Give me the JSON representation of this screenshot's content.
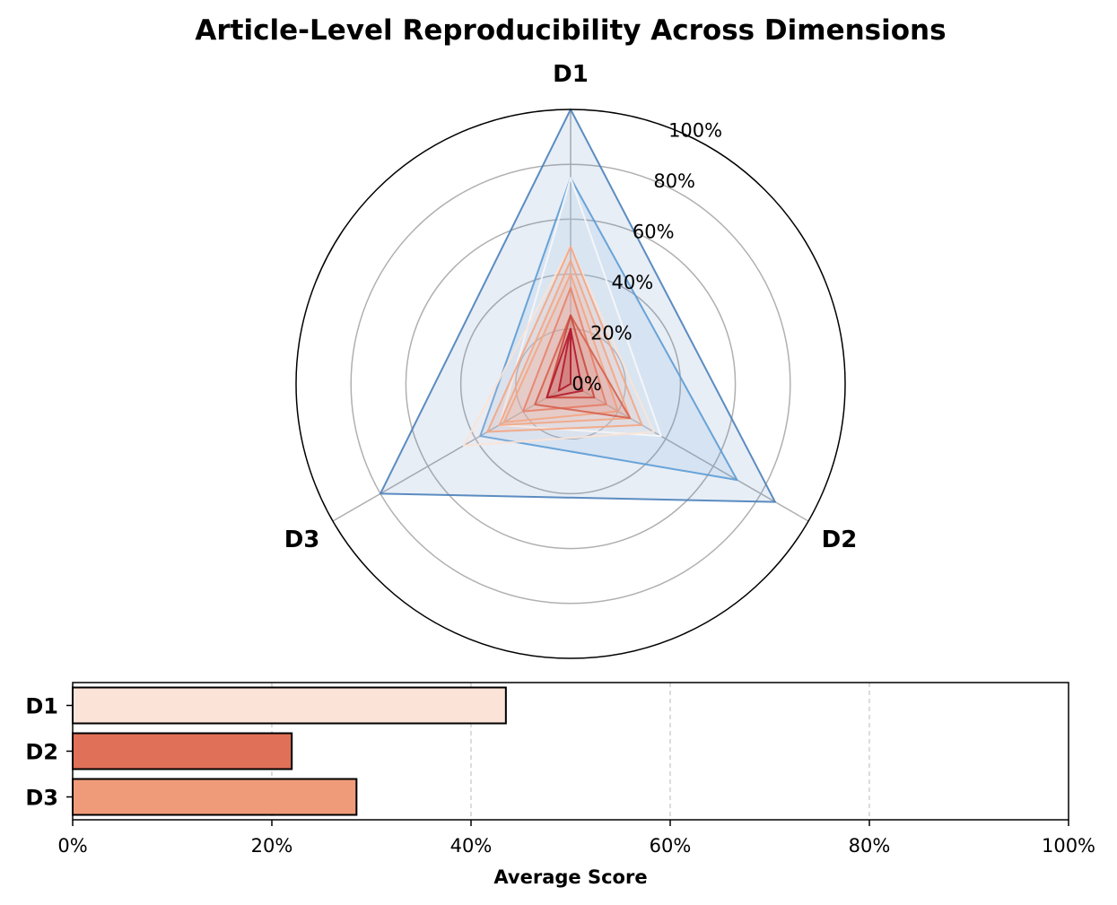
{
  "chart_data": [
    {
      "type": "radar",
      "title": "Article-Level Reproducibility Across Dimensions",
      "axes": [
        "D1",
        "D2",
        "D3"
      ],
      "r_ticks": [
        "0%",
        "20%",
        "40%",
        "60%",
        "80%",
        "100%"
      ],
      "r_range": [
        0,
        100
      ],
      "grid": true,
      "series": [
        {
          "values": [
            100,
            86,
            80
          ],
          "color": "#4a7fba"
        },
        {
          "values": [
            75,
            70,
            38
          ],
          "color": "#5b9bd5"
        },
        {
          "values": [
            75,
            38,
            30
          ],
          "color": "#f7f7f7"
        },
        {
          "values": [
            50,
            35,
            45
          ],
          "color": "#fbe3d5"
        },
        {
          "values": [
            50,
            30,
            35
          ],
          "color": "#f4a582"
        },
        {
          "values": [
            45,
            25,
            30
          ],
          "color": "#f4a582"
        },
        {
          "values": [
            40,
            20,
            28
          ],
          "color": "#f4a582"
        },
        {
          "values": [
            35,
            15,
            20
          ],
          "color": "#e8826a"
        },
        {
          "values": [
            25,
            25,
            15
          ],
          "color": "#d6604d"
        },
        {
          "values": [
            25,
            10,
            10
          ],
          "color": "#c94a3f"
        },
        {
          "values": [
            20,
            5,
            10
          ],
          "color": "#b2182b"
        },
        {
          "values": [
            20,
            0,
            5
          ],
          "color": "#b2182b"
        }
      ]
    },
    {
      "type": "bar",
      "orientation": "horizontal",
      "categories": [
        "D1",
        "D2",
        "D3"
      ],
      "values": [
        43.5,
        22,
        28.5
      ],
      "colors": [
        "#fbe3d8",
        "#e07058",
        "#ef9b7a"
      ],
      "xlabel": "Average Score",
      "xlim": [
        0,
        100
      ],
      "x_ticks": [
        "0%",
        "20%",
        "40%",
        "60%",
        "80%",
        "100%"
      ],
      "grid": "vertical-dashed"
    }
  ]
}
